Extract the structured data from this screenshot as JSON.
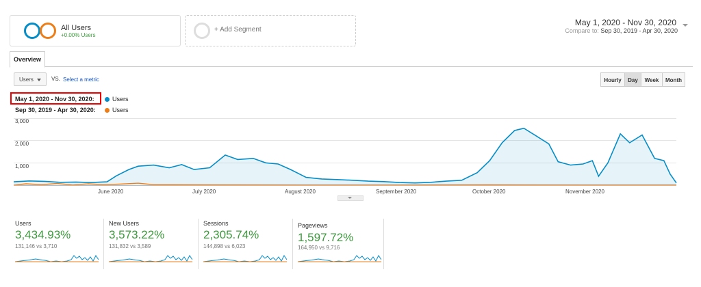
{
  "segments": {
    "active": {
      "name": "All Users",
      "sub": "+0.00% Users"
    },
    "add_label": "+ Add Segment"
  },
  "date_range": {
    "main": "May 1, 2020 - Nov 30, 2020",
    "compare_prefix": "Compare to:",
    "compare": "Sep 30, 2019 - Apr 30, 2020"
  },
  "tabs": {
    "overview": "Overview"
  },
  "metric_selector": {
    "value": "Users",
    "vs": "VS.",
    "select_metric": "Select a metric"
  },
  "granularity": [
    "Hourly",
    "Day",
    "Week",
    "Month"
  ],
  "granularity_active": "Day",
  "legend": [
    {
      "range": "May 1, 2020 - Nov 30, 2020:",
      "metric": "Users",
      "color": "#058dc7"
    },
    {
      "range": "Sep 30, 2019 - Apr 30, 2020:",
      "metric": "Users",
      "color": "#ed7e17"
    }
  ],
  "chart_data": {
    "type": "area",
    "y_ticks": [
      "3,000",
      "2,000",
      "1,000"
    ],
    "ylim": [
      0,
      3000
    ],
    "x_ticks": [
      "June 2020",
      "July 2020",
      "August 2020",
      "September 2020",
      "October 2020",
      "November 2020"
    ],
    "x_range": [
      "2020-05-01",
      "2020-11-30"
    ],
    "series": [
      {
        "name": "Users",
        "color": "#058dc7",
        "points": [
          [
            "2020-05-01",
            150
          ],
          [
            "2020-05-06",
            190
          ],
          [
            "2020-05-11",
            170
          ],
          [
            "2020-05-16",
            130
          ],
          [
            "2020-05-21",
            140
          ],
          [
            "2020-05-26",
            120
          ],
          [
            "2020-05-31",
            150
          ],
          [
            "2020-06-03",
            420
          ],
          [
            "2020-06-07",
            700
          ],
          [
            "2020-06-10",
            850
          ],
          [
            "2020-06-15",
            900
          ],
          [
            "2020-06-20",
            780
          ],
          [
            "2020-06-24",
            920
          ],
          [
            "2020-06-28",
            700
          ],
          [
            "2020-07-03",
            780
          ],
          [
            "2020-07-08",
            1350
          ],
          [
            "2020-07-12",
            1150
          ],
          [
            "2020-07-17",
            1200
          ],
          [
            "2020-07-21",
            1000
          ],
          [
            "2020-07-25",
            950
          ],
          [
            "2020-07-29",
            700
          ],
          [
            "2020-08-03",
            350
          ],
          [
            "2020-08-08",
            280
          ],
          [
            "2020-08-13",
            250
          ],
          [
            "2020-08-18",
            220
          ],
          [
            "2020-08-23",
            180
          ],
          [
            "2020-08-28",
            160
          ],
          [
            "2020-09-02",
            120
          ],
          [
            "2020-09-07",
            100
          ],
          [
            "2020-09-12",
            130
          ],
          [
            "2020-09-17",
            180
          ],
          [
            "2020-09-22",
            220
          ],
          [
            "2020-09-27",
            560
          ],
          [
            "2020-10-01",
            1100
          ],
          [
            "2020-10-05",
            1900
          ],
          [
            "2020-10-09",
            2450
          ],
          [
            "2020-10-12",
            2550
          ],
          [
            "2020-10-16",
            2200
          ],
          [
            "2020-10-20",
            1850
          ],
          [
            "2020-10-23",
            1050
          ],
          [
            "2020-10-27",
            900
          ],
          [
            "2020-10-31",
            950
          ],
          [
            "2020-11-03",
            1100
          ],
          [
            "2020-11-05",
            400
          ],
          [
            "2020-11-08",
            1000
          ],
          [
            "2020-11-12",
            2300
          ],
          [
            "2020-11-15",
            1900
          ],
          [
            "2020-11-19",
            2250
          ],
          [
            "2020-11-23",
            1200
          ],
          [
            "2020-11-26",
            1100
          ],
          [
            "2020-11-28",
            500
          ],
          [
            "2020-11-30",
            100
          ]
        ]
      },
      {
        "name": "Users",
        "color": "#ed7e17",
        "points": [
          [
            "2020-05-01",
            0
          ],
          [
            "2020-05-05",
            60
          ],
          [
            "2020-05-10",
            20
          ],
          [
            "2020-05-15",
            80
          ],
          [
            "2020-05-20",
            10
          ],
          [
            "2020-05-25",
            60
          ],
          [
            "2020-05-30",
            20
          ],
          [
            "2020-06-04",
            50
          ],
          [
            "2020-06-10",
            90
          ],
          [
            "2020-06-15",
            20
          ],
          [
            "2020-07-01",
            15
          ],
          [
            "2020-08-01",
            10
          ],
          [
            "2020-09-01",
            10
          ],
          [
            "2020-10-01",
            15
          ],
          [
            "2020-11-01",
            10
          ],
          [
            "2020-11-30",
            10
          ]
        ]
      }
    ]
  },
  "scorecards": [
    {
      "label": "Users",
      "value": "3,434.93%",
      "sub": "131,146 vs 3,710"
    },
    {
      "label": "New Users",
      "value": "3,573.22%",
      "sub": "131,832 vs 3,589"
    },
    {
      "label": "Sessions",
      "value": "2,305.74%",
      "sub": "144,898 vs 6,023"
    },
    {
      "label": "Pageviews",
      "value": "1,597.72%",
      "sub": "164,950 vs 9,716"
    }
  ]
}
